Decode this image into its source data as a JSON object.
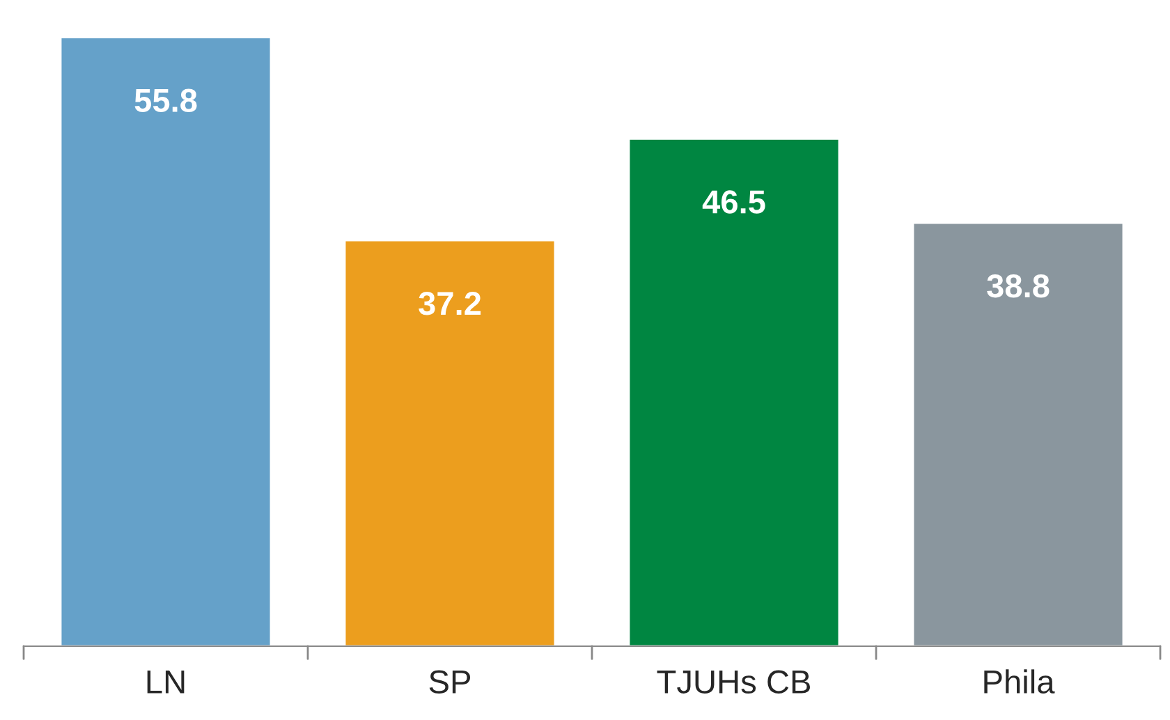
{
  "chart_data": {
    "type": "bar",
    "categories": [
      "LN",
      "SP",
      "TJUHs CB",
      "Phila"
    ],
    "values": [
      55.8,
      37.2,
      46.5,
      38.8
    ],
    "colors": [
      "#65a1c9",
      "#ec9e1e",
      "#008641",
      "#8a969e"
    ],
    "data_labels": true,
    "grid": false,
    "legend": false
  }
}
